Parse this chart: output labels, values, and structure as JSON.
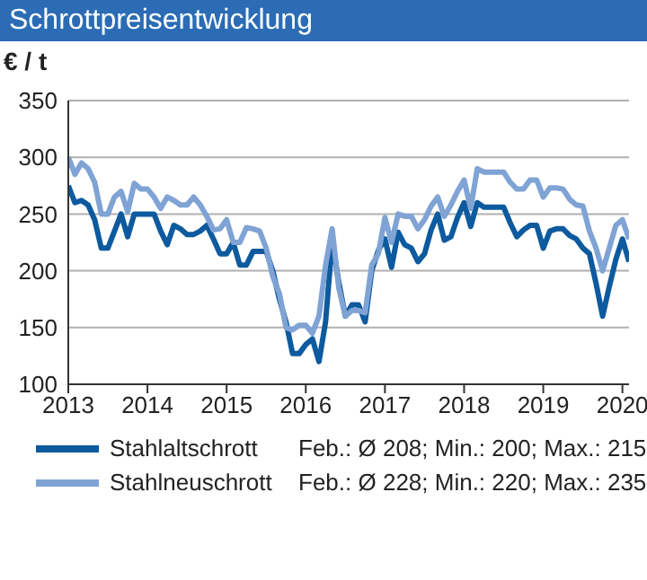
{
  "chart_data": {
    "type": "line",
    "title": "Schrottpreisentwicklung",
    "ylabel": "€ / t",
    "x": [
      "2013-01",
      "2013-02",
      "2013-03",
      "2013-04",
      "2013-05",
      "2013-06",
      "2013-07",
      "2013-08",
      "2013-09",
      "2013-10",
      "2013-11",
      "2013-12",
      "2014-01",
      "2014-02",
      "2014-03",
      "2014-04",
      "2014-05",
      "2014-06",
      "2014-07",
      "2014-08",
      "2014-09",
      "2014-10",
      "2014-11",
      "2014-12",
      "2015-01",
      "2015-02",
      "2015-03",
      "2015-04",
      "2015-05",
      "2015-06",
      "2015-07",
      "2015-08",
      "2015-09",
      "2015-10",
      "2015-11",
      "2015-12",
      "2016-01",
      "2016-02",
      "2016-03",
      "2016-04",
      "2016-05",
      "2016-06",
      "2016-07",
      "2016-08",
      "2016-09",
      "2016-10",
      "2016-11",
      "2016-12",
      "2017-01",
      "2017-02",
      "2017-03",
      "2017-04",
      "2017-05",
      "2017-06",
      "2017-07",
      "2017-08",
      "2017-09",
      "2017-10",
      "2017-11",
      "2017-12",
      "2018-01",
      "2018-02",
      "2018-03",
      "2018-04",
      "2018-05",
      "2018-06",
      "2018-07",
      "2018-08",
      "2018-09",
      "2018-10",
      "2018-11",
      "2018-12",
      "2019-01",
      "2019-02",
      "2019-03",
      "2019-04",
      "2019-05",
      "2019-06",
      "2019-07",
      "2019-08",
      "2019-09",
      "2019-10",
      "2019-11",
      "2019-12",
      "2020-01",
      "2020-02"
    ],
    "series": [
      {
        "name": "Stahlaltschrott",
        "color": "#0d5a9e",
        "values": [
          275,
          260,
          262,
          258,
          245,
          220,
          220,
          235,
          250,
          230,
          250,
          250,
          250,
          250,
          235,
          223,
          240,
          237,
          232,
          232,
          235,
          240,
          228,
          215,
          215,
          225,
          205,
          205,
          217,
          217,
          217,
          200,
          175,
          155,
          127,
          127,
          135,
          140,
          120,
          155,
          226,
          190,
          160,
          170,
          170,
          155,
          200,
          218,
          228,
          203,
          234,
          223,
          220,
          208,
          215,
          236,
          250,
          227,
          230,
          247,
          260,
          239,
          260,
          256,
          256,
          256,
          256,
          242,
          230,
          236,
          240,
          240,
          220,
          235,
          237,
          237,
          231,
          228,
          220,
          215,
          189,
          160,
          186,
          210,
          228,
          208
        ]
      },
      {
        "name": "Stahlneuschrott",
        "color": "#7fa3d4",
        "values": [
          300,
          285,
          295,
          290,
          278,
          250,
          250,
          265,
          270,
          252,
          277,
          272,
          272,
          265,
          255,
          265,
          262,
          258,
          258,
          265,
          258,
          248,
          236,
          237,
          245,
          225,
          225,
          238,
          237,
          235,
          220,
          195,
          180,
          150,
          148,
          152,
          152,
          145,
          160,
          205,
          237,
          185,
          160,
          165,
          165,
          163,
          205,
          215,
          247,
          225,
          250,
          248,
          248,
          237,
          245,
          257,
          265,
          248,
          258,
          270,
          280,
          255,
          290,
          287,
          287,
          287,
          287,
          278,
          272,
          272,
          280,
          280,
          265,
          273,
          273,
          272,
          263,
          258,
          257,
          235,
          220,
          200,
          220,
          240,
          245,
          228
        ]
      }
    ],
    "annotations": [
      "Feb.: Ø 208; Min.: 200; Max.: 215",
      "Feb.: Ø 228; Min.: 220; Max.: 235"
    ],
    "xlim": [
      "2013-01",
      "2020-02"
    ],
    "xticks": [
      {
        "value": "2013",
        "label": "2013"
      },
      {
        "value": "2014",
        "label": "2014"
      },
      {
        "value": "2015",
        "label": "2015"
      },
      {
        "value": "2016",
        "label": "2016"
      },
      {
        "value": "2017",
        "label": "2017"
      },
      {
        "value": "2018",
        "label": "2018"
      },
      {
        "value": "2019",
        "label": "2019"
      },
      {
        "value": "2020",
        "label": "2020"
      }
    ],
    "ylim": [
      100,
      350
    ],
    "yticks": [
      100,
      150,
      200,
      250,
      300,
      350
    ],
    "grid": "y",
    "legend": "bottom",
    "marker": "none",
    "line_style": "solid"
  }
}
